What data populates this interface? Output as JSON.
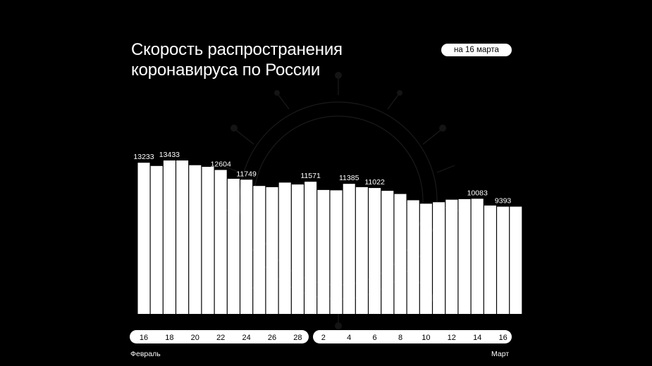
{
  "header": {
    "title_line1": "Скорость распространения",
    "title_line2": "коронавируса по России",
    "date_badge": "на 16 марта"
  },
  "axis": {
    "month_start": "Февраль",
    "month_end": "Март"
  },
  "chart_data": {
    "type": "bar",
    "title": "Скорость распространения коронавируса по России",
    "categories": [
      "16",
      "17",
      "18",
      "19",
      "20",
      "21",
      "22",
      "23",
      "24",
      "25",
      "26",
      "27",
      "28",
      "1",
      "2",
      "3",
      "4",
      "5",
      "6",
      "7",
      "8",
      "9",
      "10",
      "11",
      "12",
      "13",
      "14",
      "15",
      "16",
      "17"
    ],
    "values": [
      13233,
      12950,
      13433,
      13430,
      13020,
      12880,
      12604,
      11830,
      11749,
      11200,
      11100,
      11500,
      11330,
      11571,
      10850,
      10820,
      11385,
      11100,
      11022,
      10780,
      10500,
      9950,
      9650,
      9780,
      10000,
      10050,
      10083,
      9490,
      9393,
      9393
    ],
    "value_labels": {
      "0": "13233",
      "2": "13433",
      "6": "12604",
      "8": "11749",
      "13": "11571",
      "16": "11385",
      "18": "11022",
      "26": "10083",
      "28": "9393"
    },
    "tick_labels": [
      {
        "index": 0,
        "label": "16"
      },
      {
        "index": 2,
        "label": "18"
      },
      {
        "index": 4,
        "label": "20"
      },
      {
        "index": 6,
        "label": "22"
      },
      {
        "index": 8,
        "label": "24"
      },
      {
        "index": 10,
        "label": "26"
      },
      {
        "index": 12,
        "label": "28"
      },
      {
        "index": 14,
        "label": "2"
      },
      {
        "index": 16,
        "label": "4"
      },
      {
        "index": 18,
        "label": "6"
      },
      {
        "index": 20,
        "label": "8"
      },
      {
        "index": 22,
        "label": "10"
      },
      {
        "index": 24,
        "label": "12"
      },
      {
        "index": 26,
        "label": "14"
      },
      {
        "index": 28,
        "label": "16"
      }
    ],
    "ylim": [
      0,
      13433
    ],
    "grid": false,
    "bar_color": "#ffffff",
    "background_color": "#000000",
    "tick_color": "#000000"
  }
}
